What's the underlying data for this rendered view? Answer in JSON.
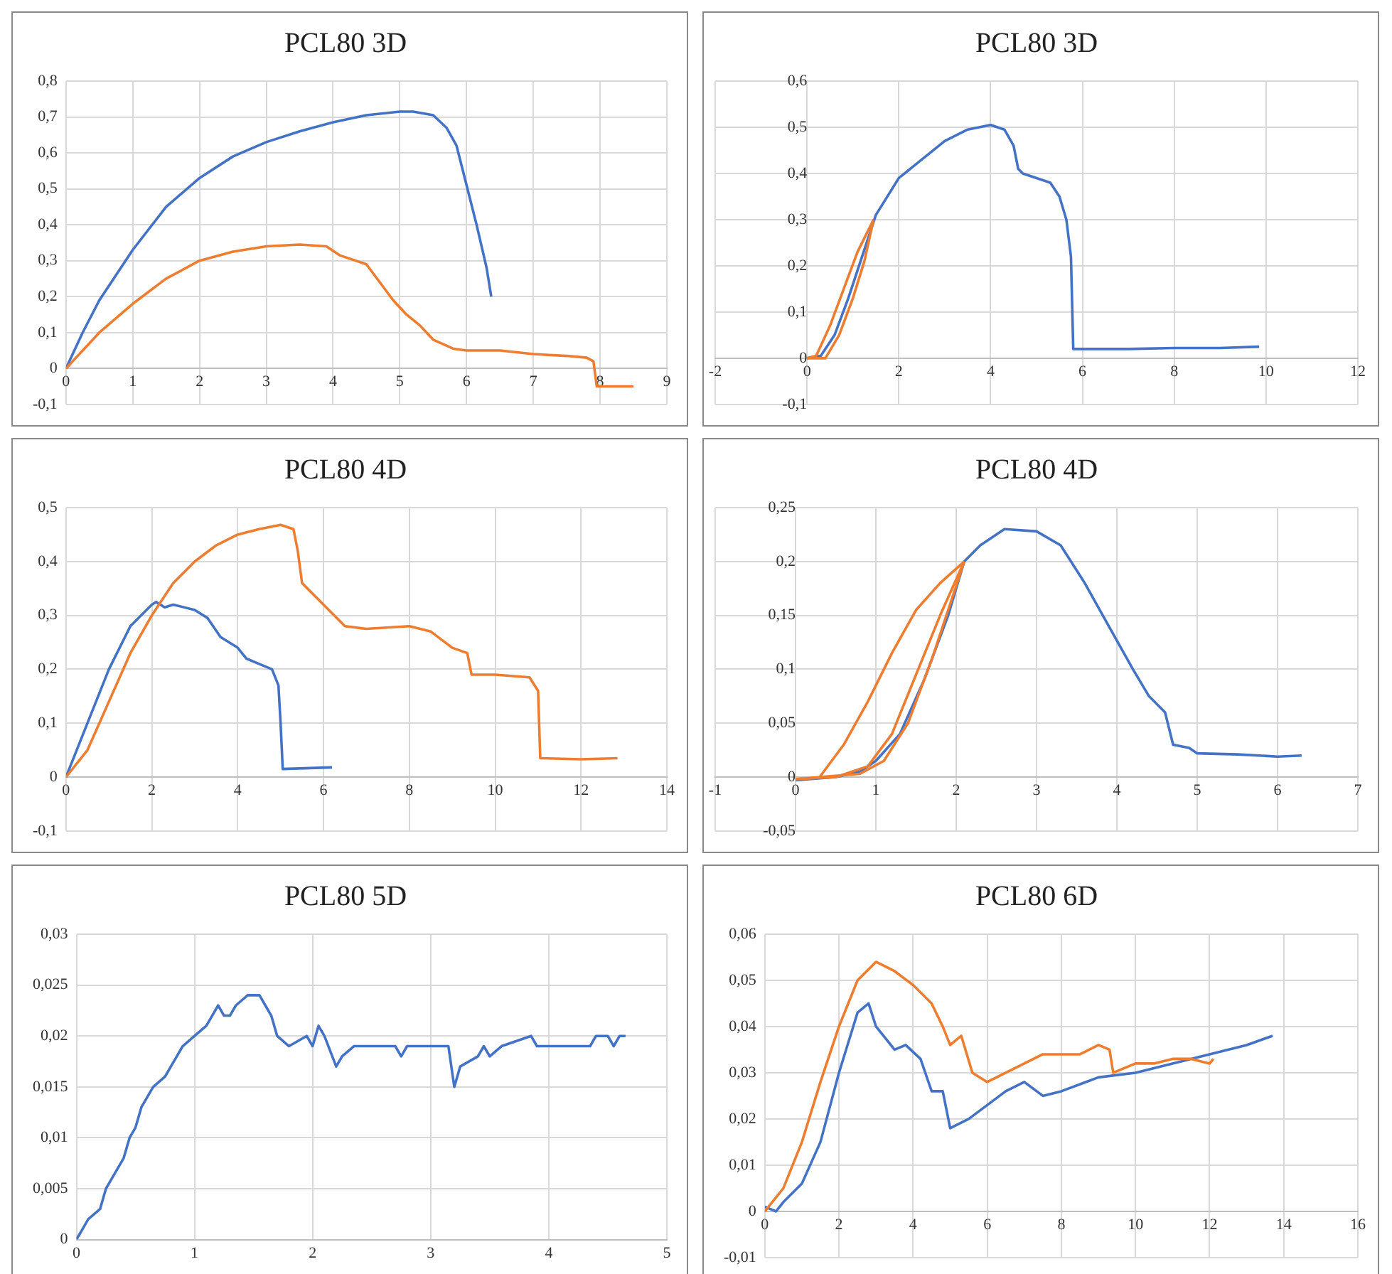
{
  "chart_data": [
    {
      "type": "line",
      "title": "PCL80 3D",
      "xlim": [
        0,
        9
      ],
      "xticks": [
        0,
        1,
        2,
        3,
        4,
        5,
        6,
        7,
        8,
        9
      ],
      "ylim": [
        -0.1,
        0.8
      ],
      "yticks": [
        {
          "value": -0.1,
          "label": "-0,1"
        },
        {
          "value": 0,
          "label": "0"
        },
        {
          "value": 0.1,
          "label": "0,1"
        },
        {
          "value": 0.2,
          "label": "0,2"
        },
        {
          "value": 0.3,
          "label": "0,3"
        },
        {
          "value": 0.4,
          "label": "0,4"
        },
        {
          "value": 0.5,
          "label": "0,5"
        },
        {
          "value": 0.6,
          "label": "0,6"
        },
        {
          "value": 0.7,
          "label": "0,7"
        },
        {
          "value": 0.8,
          "label": "0,8"
        }
      ],
      "grid": true,
      "marker": "none",
      "series": [
        {
          "color": "#ed7d31",
          "x": [
            0,
            0.5,
            1,
            1.5,
            2,
            2.5,
            3,
            3.5,
            3.9,
            4.1,
            4.5,
            4.7,
            4.9,
            5.1,
            5.3,
            5.5,
            5.8,
            6,
            6.5,
            7,
            7.5,
            7.8,
            7.9,
            7.95,
            8.5
          ],
          "values": [
            0,
            0.1,
            0.18,
            0.25,
            0.3,
            0.325,
            0.34,
            0.345,
            0.34,
            0.315,
            0.29,
            0.24,
            0.19,
            0.15,
            0.12,
            0.08,
            0.055,
            0.05,
            0.05,
            0.04,
            0.035,
            0.03,
            0.02,
            -0.05,
            -0.05
          ]
        },
        {
          "color": "#4472c4",
          "x": [
            0,
            0.25,
            0.5,
            1,
            1.5,
            2,
            2.5,
            3,
            3.5,
            4,
            4.5,
            5,
            5.2,
            5.5,
            5.7,
            5.85,
            6,
            6.15,
            6.3,
            6.37
          ],
          "values": [
            0,
            0.1,
            0.19,
            0.33,
            0.45,
            0.53,
            0.59,
            0.63,
            0.66,
            0.685,
            0.705,
            0.715,
            0.715,
            0.705,
            0.67,
            0.62,
            0.51,
            0.4,
            0.28,
            0.2
          ]
        }
      ]
    },
    {
      "type": "line",
      "title": "PCL80 3D",
      "xlim": [
        -2,
        12
      ],
      "xticks": [
        -2,
        0,
        2,
        4,
        6,
        8,
        10,
        12
      ],
      "ylim": [
        -0.1,
        0.6
      ],
      "yticks": [
        {
          "value": -0.1,
          "label": "-0,1"
        },
        {
          "value": 0,
          "label": "0"
        },
        {
          "value": 0.1,
          "label": "0,1"
        },
        {
          "value": 0.2,
          "label": "0,2"
        },
        {
          "value": 0.3,
          "label": "0,3"
        },
        {
          "value": 0.4,
          "label": "0,4"
        },
        {
          "value": 0.5,
          "label": "0,5"
        },
        {
          "value": 0.6,
          "label": "0,6"
        }
      ],
      "grid": true,
      "marker": "none",
      "series": [
        {
          "color": "#ed7d31",
          "x": [
            0,
            0.2,
            0.5,
            0.8,
            1.1,
            1.45
          ],
          "values": [
            0,
            0.005,
            0.07,
            0.15,
            0.23,
            0.3
          ]
        },
        {
          "color": "#ed7d31",
          "x": [
            0,
            0.4,
            0.7,
            1,
            1.25,
            1.45
          ],
          "values": [
            0,
            0,
            0.05,
            0.13,
            0.21,
            0.3
          ]
        },
        {
          "color": "#4472c4",
          "x": [
            0,
            0.3,
            0.6,
            0.9,
            1.2,
            1.5,
            2,
            2.5,
            3,
            3.5,
            4,
            4.3,
            4.5,
            4.6,
            4.7,
            5,
            5.3,
            5.5,
            5.65,
            5.75,
            5.8,
            7,
            8,
            9,
            9.85
          ],
          "values": [
            0,
            0.005,
            0.05,
            0.13,
            0.22,
            0.31,
            0.39,
            0.43,
            0.47,
            0.495,
            0.505,
            0.495,
            0.46,
            0.41,
            0.4,
            0.39,
            0.38,
            0.35,
            0.3,
            0.22,
            0.02,
            0.02,
            0.022,
            0.022,
            0.025
          ]
        }
      ]
    },
    {
      "type": "line",
      "title": "PCL80 4D",
      "xlim": [
        0,
        14
      ],
      "xticks": [
        0,
        2,
        4,
        6,
        8,
        10,
        12,
        14
      ],
      "ylim": [
        -0.1,
        0.5
      ],
      "yticks": [
        {
          "value": -0.1,
          "label": "-0,1"
        },
        {
          "value": 0,
          "label": "0"
        },
        {
          "value": 0.1,
          "label": "0,1"
        },
        {
          "value": 0.2,
          "label": "0,2"
        },
        {
          "value": 0.3,
          "label": "0,3"
        },
        {
          "value": 0.4,
          "label": "0,4"
        },
        {
          "value": 0.5,
          "label": "0,5"
        }
      ],
      "grid": true,
      "marker": "none",
      "series": [
        {
          "color": "#ed7d31",
          "x": [
            0,
            0.5,
            1,
            1.5,
            2,
            2.5,
            3,
            3.5,
            4,
            4.5,
            5,
            5.3,
            5.4,
            5.5,
            6,
            6.5,
            7,
            8,
            8.5,
            9,
            9.35,
            9.45,
            10,
            10.8,
            11,
            11.05,
            12,
            12.85
          ],
          "values": [
            0,
            0.05,
            0.14,
            0.23,
            0.3,
            0.36,
            0.4,
            0.43,
            0.45,
            0.46,
            0.468,
            0.46,
            0.42,
            0.36,
            0.32,
            0.28,
            0.275,
            0.28,
            0.27,
            0.24,
            0.23,
            0.19,
            0.19,
            0.185,
            0.16,
            0.035,
            0.033,
            0.035
          ]
        },
        {
          "color": "#4472c4",
          "x": [
            0,
            0.5,
            1,
            1.5,
            2,
            2.1,
            2.3,
            2.5,
            3,
            3.3,
            3.6,
            4,
            4.2,
            4.5,
            4.8,
            4.95,
            5,
            5.05,
            6.2
          ],
          "values": [
            0,
            0.1,
            0.2,
            0.28,
            0.32,
            0.325,
            0.315,
            0.32,
            0.31,
            0.295,
            0.26,
            0.24,
            0.22,
            0.21,
            0.2,
            0.17,
            0.1,
            0.015,
            0.018
          ]
        }
      ]
    },
    {
      "type": "line",
      "title": "PCL80 4D",
      "xlim": [
        -1,
        7
      ],
      "xticks": [
        -1,
        0,
        1,
        2,
        3,
        4,
        5,
        6,
        7
      ],
      "ylim": [
        -0.05,
        0.25
      ],
      "yticks": [
        {
          "value": -0.05,
          "label": "-0,05"
        },
        {
          "value": 0,
          "label": "0"
        },
        {
          "value": 0.05,
          "label": "0,05"
        },
        {
          "value": 0.1,
          "label": "0,1"
        },
        {
          "value": 0.15,
          "label": "0,15"
        },
        {
          "value": 0.2,
          "label": "0,2"
        },
        {
          "value": 0.25,
          "label": "0,25"
        }
      ],
      "grid": true,
      "marker": "none",
      "series": [
        {
          "color": "#ed7d31",
          "x": [
            0,
            0.3,
            0.6,
            0.9,
            1.2,
            1.5,
            1.8,
            2.1
          ],
          "values": [
            -0.002,
            0,
            0.03,
            0.07,
            0.115,
            0.155,
            0.18,
            0.2
          ]
        },
        {
          "color": "#ed7d31",
          "x": [
            0,
            0.5,
            0.9,
            1.2,
            1.5,
            1.8,
            2.1
          ],
          "values": [
            -0.002,
            0,
            0.01,
            0.04,
            0.095,
            0.15,
            0.2
          ]
        },
        {
          "color": "#ed7d31",
          "x": [
            0.3,
            0.8,
            1.1,
            1.4,
            1.7,
            2.1
          ],
          "values": [
            0,
            0.003,
            0.015,
            0.05,
            0.11,
            0.2
          ]
        },
        {
          "color": "#4472c4",
          "x": [
            0,
            0.5,
            0.8,
            1,
            1.3,
            1.6,
            1.9,
            2.1,
            2.3,
            2.6,
            3,
            3.3,
            3.6,
            3.9,
            4.2,
            4.4,
            4.6,
            4.7,
            4.9,
            5,
            5.5,
            6,
            6.3
          ],
          "values": [
            -0.003,
            0,
            0.005,
            0.015,
            0.04,
            0.09,
            0.15,
            0.2,
            0.215,
            0.23,
            0.228,
            0.215,
            0.18,
            0.14,
            0.1,
            0.075,
            0.06,
            0.03,
            0.027,
            0.022,
            0.021,
            0.019,
            0.02
          ]
        }
      ]
    },
    {
      "type": "line",
      "title": "PCL80 5D",
      "xlim": [
        0,
        5
      ],
      "xticks": [
        0,
        1,
        2,
        3,
        4,
        5
      ],
      "ylim": [
        0,
        0.03
      ],
      "yticks": [
        {
          "value": 0,
          "label": "0"
        },
        {
          "value": 0.005,
          "label": "0,005"
        },
        {
          "value": 0.01,
          "label": "0,01"
        },
        {
          "value": 0.015,
          "label": "0,015"
        },
        {
          "value": 0.02,
          "label": "0,02"
        },
        {
          "value": 0.025,
          "label": "0,025"
        },
        {
          "value": 0.03,
          "label": "0,03"
        }
      ],
      "grid": true,
      "marker": "none",
      "series": [
        {
          "color": "#4472c4",
          "x": [
            0,
            0.05,
            0.1,
            0.2,
            0.25,
            0.3,
            0.4,
            0.45,
            0.5,
            0.55,
            0.65,
            0.75,
            0.8,
            0.85,
            0.9,
            1,
            1.1,
            1.15,
            1.2,
            1.25,
            1.3,
            1.35,
            1.45,
            1.55,
            1.6,
            1.65,
            1.7,
            1.8,
            1.95,
            2,
            2.05,
            2.1,
            2.2,
            2.25,
            2.35,
            2.7,
            2.75,
            2.8,
            3.15,
            3.2,
            3.25,
            3.4,
            3.45,
            3.5,
            3.6,
            3.85,
            3.9,
            4.35,
            4.4,
            4.5,
            4.55,
            4.6,
            4.65
          ],
          "values": [
            0,
            0.001,
            0.002,
            0.003,
            0.005,
            0.006,
            0.008,
            0.01,
            0.011,
            0.013,
            0.015,
            0.016,
            0.017,
            0.018,
            0.019,
            0.02,
            0.021,
            0.022,
            0.023,
            0.022,
            0.022,
            0.023,
            0.024,
            0.024,
            0.023,
            0.022,
            0.02,
            0.019,
            0.02,
            0.019,
            0.021,
            0.02,
            0.017,
            0.018,
            0.019,
            0.019,
            0.018,
            0.019,
            0.019,
            0.015,
            0.017,
            0.018,
            0.019,
            0.018,
            0.019,
            0.02,
            0.019,
            0.019,
            0.02,
            0.02,
            0.019,
            0.02,
            0.02
          ]
        }
      ]
    },
    {
      "type": "line",
      "title": "PCL80 6D",
      "xlim": [
        0,
        16
      ],
      "xticks": [
        0,
        2,
        4,
        6,
        8,
        10,
        12,
        14,
        16
      ],
      "ylim": [
        -0.01,
        0.06
      ],
      "yticks": [
        {
          "value": -0.01,
          "label": "-0,01"
        },
        {
          "value": 0,
          "label": "0"
        },
        {
          "value": 0.01,
          "label": "0,01"
        },
        {
          "value": 0.02,
          "label": "0,02"
        },
        {
          "value": 0.03,
          "label": "0,03"
        },
        {
          "value": 0.04,
          "label": "0,04"
        },
        {
          "value": 0.05,
          "label": "0,05"
        },
        {
          "value": 0.06,
          "label": "0,06"
        }
      ],
      "grid": true,
      "marker": "none",
      "series": [
        {
          "color": "#ed7d31",
          "x": [
            0,
            0.5,
            1,
            1.5,
            2,
            2.5,
            3,
            3.5,
            4,
            4.5,
            4.8,
            5,
            5.3,
            5.6,
            6,
            6.5,
            7,
            7.5,
            8,
            8.5,
            9,
            9.3,
            9.4,
            10,
            10.5,
            11,
            11.5,
            12,
            12.1
          ],
          "values": [
            0,
            0.005,
            0.015,
            0.028,
            0.04,
            0.05,
            0.054,
            0.052,
            0.049,
            0.045,
            0.04,
            0.036,
            0.038,
            0.03,
            0.028,
            0.03,
            0.032,
            0.034,
            0.034,
            0.034,
            0.036,
            0.035,
            0.03,
            0.032,
            0.032,
            0.033,
            0.033,
            0.032,
            0.033
          ]
        },
        {
          "color": "#4472c4",
          "x": [
            0,
            0.3,
            0.5,
            1,
            1.5,
            2,
            2.5,
            2.8,
            3,
            3.5,
            3.8,
            4.2,
            4.5,
            4.8,
            5,
            5.5,
            6,
            6.5,
            7,
            7.5,
            8,
            9,
            10,
            11,
            12,
            13,
            13.7
          ],
          "values": [
            0.001,
            0,
            0.002,
            0.006,
            0.015,
            0.03,
            0.043,
            0.045,
            0.04,
            0.035,
            0.036,
            0.033,
            0.026,
            0.026,
            0.018,
            0.02,
            0.023,
            0.026,
            0.028,
            0.025,
            0.026,
            0.029,
            0.03,
            0.032,
            0.034,
            0.036,
            0.038
          ]
        }
      ]
    }
  ]
}
